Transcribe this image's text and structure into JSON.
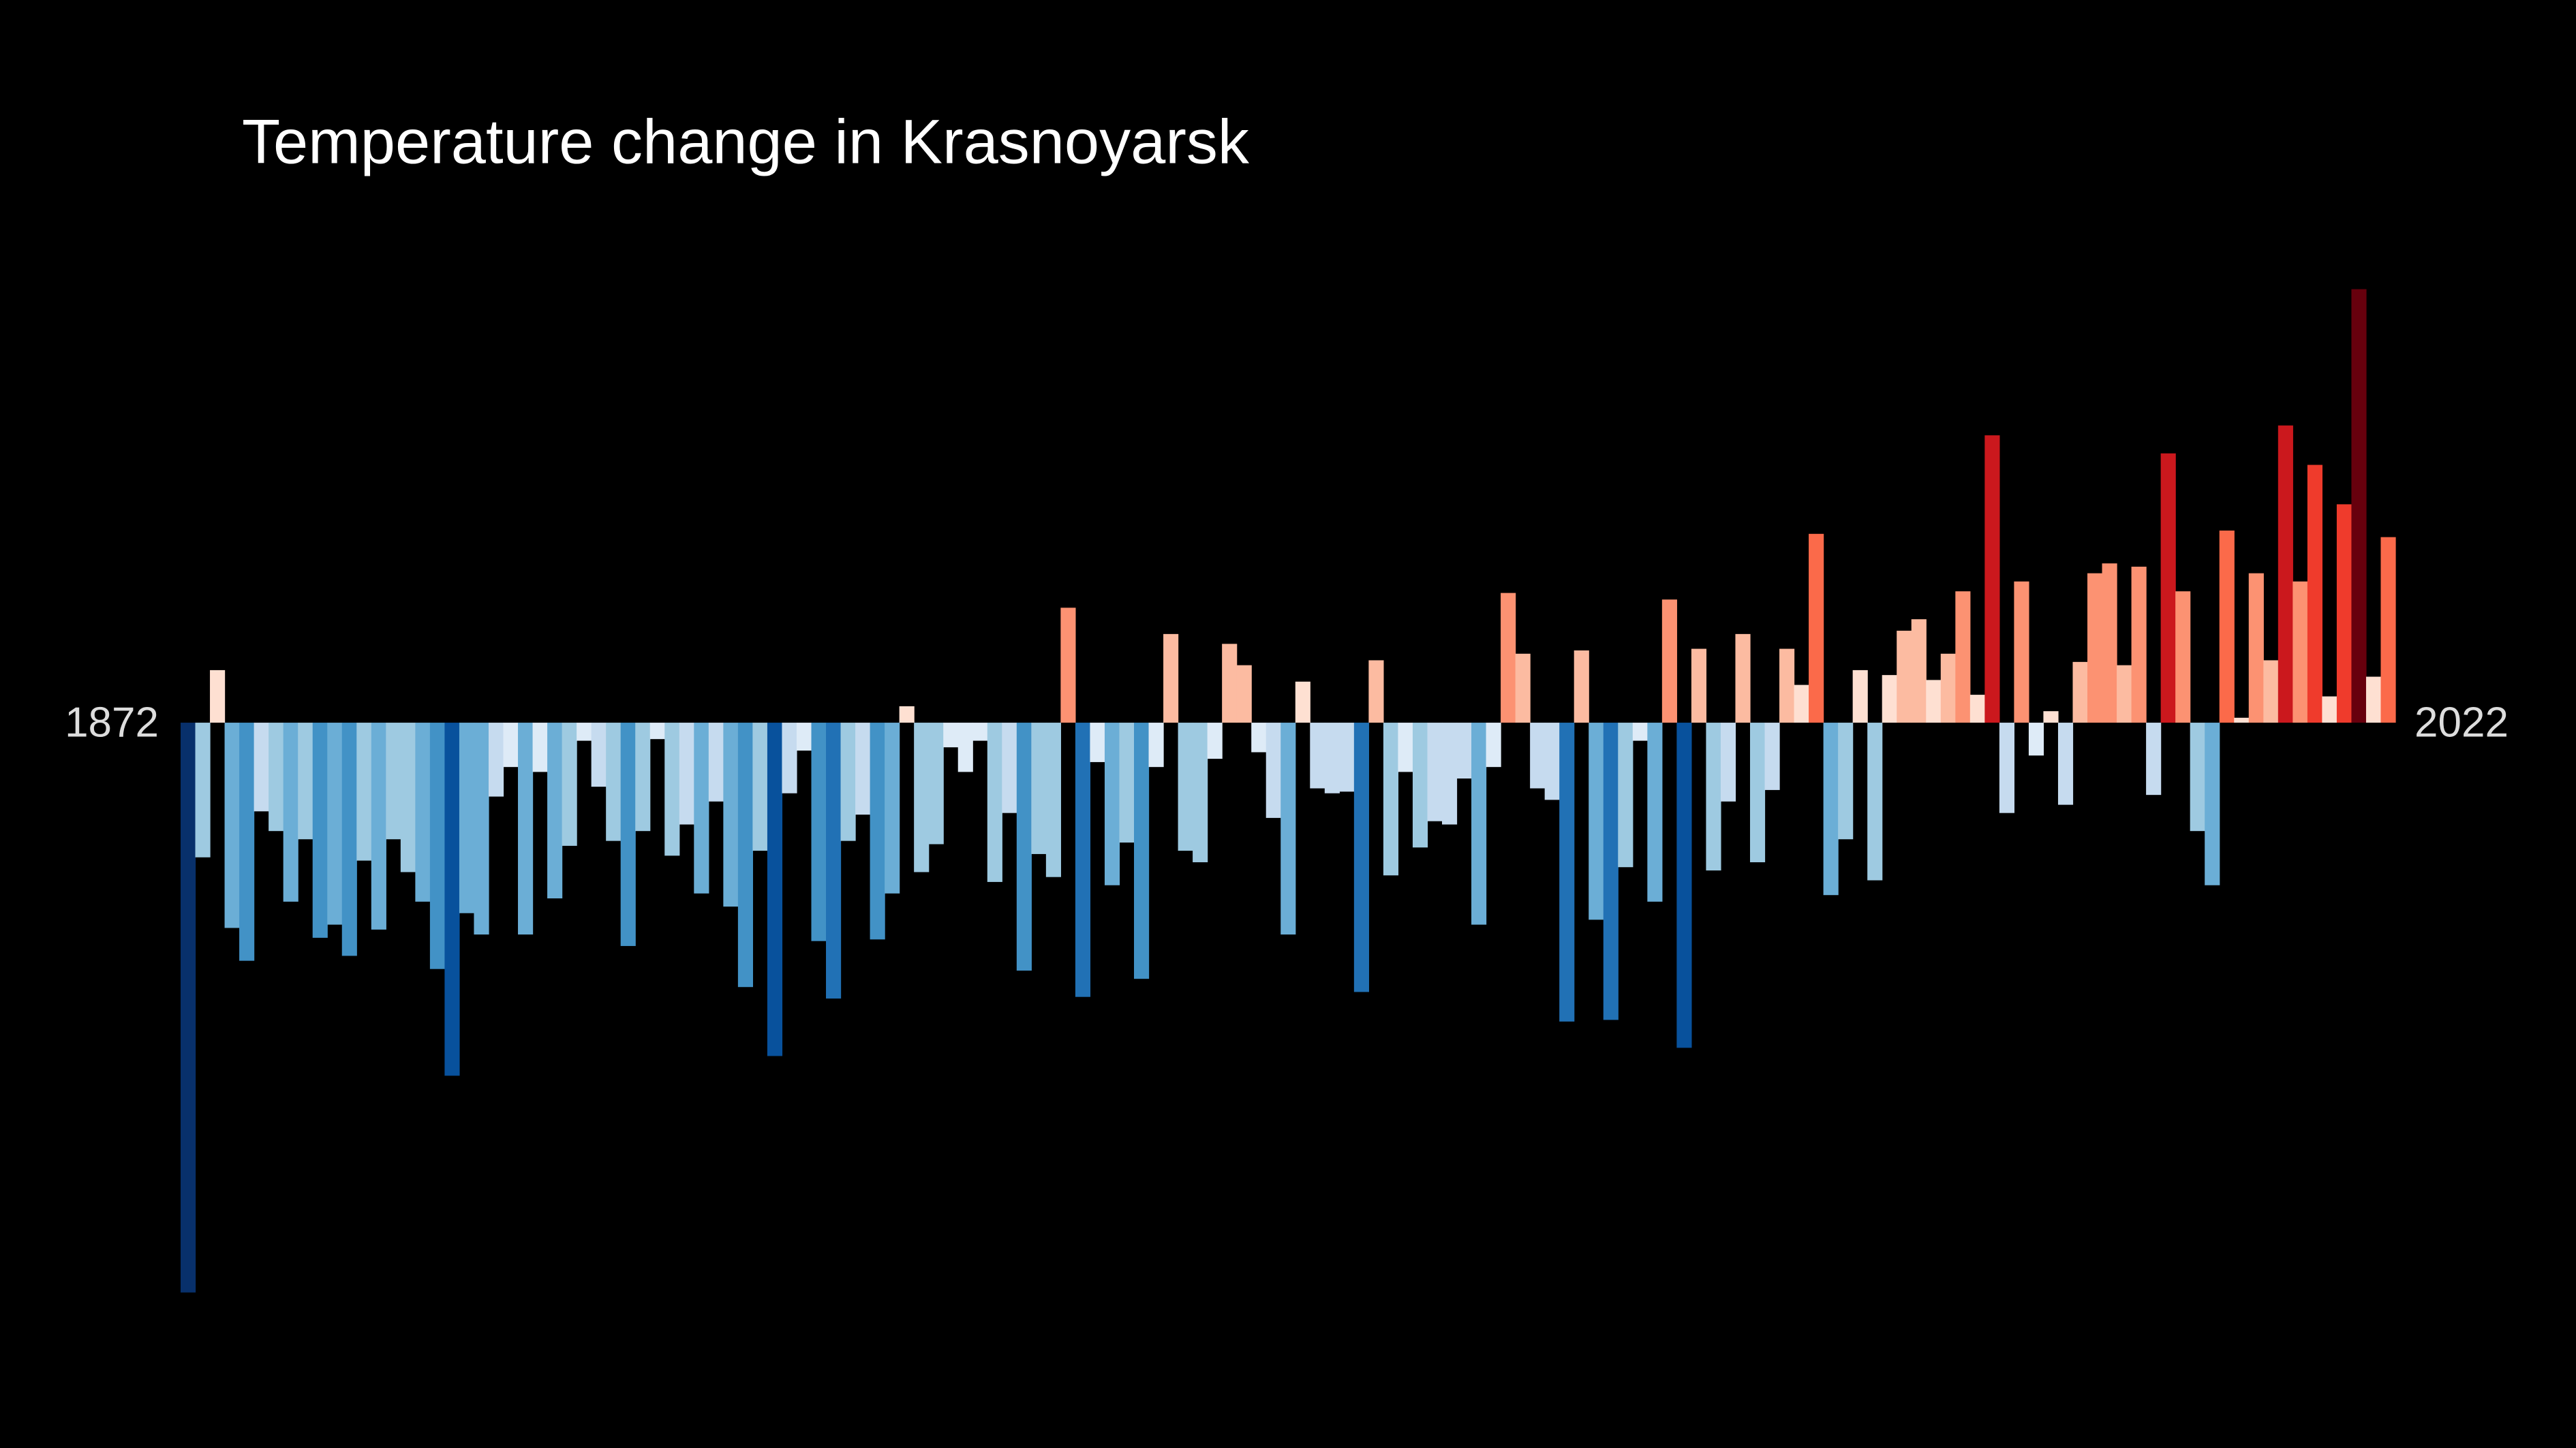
{
  "chart_data": {
    "type": "bar",
    "title": "Temperature change in Krasnoyarsk",
    "categories": [
      "1872",
      null,
      null,
      null,
      null,
      null,
      null,
      null,
      null,
      null,
      null,
      null,
      null,
      null,
      null,
      null,
      null,
      null,
      null,
      null,
      null,
      null,
      null,
      null,
      null,
      null,
      null,
      null,
      null,
      null,
      null,
      null,
      null,
      null,
      null,
      null,
      null,
      null,
      null,
      null,
      null,
      null,
      null,
      null,
      null,
      null,
      null,
      null,
      null,
      null,
      null,
      null,
      null,
      null,
      null,
      null,
      null,
      null,
      null,
      null,
      null,
      null,
      null,
      null,
      null,
      null,
      null,
      null,
      null,
      null,
      null,
      null,
      null,
      null,
      null,
      null,
      null,
      null,
      null,
      null,
      null,
      null,
      null,
      null,
      null,
      null,
      null,
      null,
      null,
      null,
      null,
      null,
      null,
      null,
      null,
      null,
      null,
      null,
      null,
      null,
      null,
      null,
      null,
      null,
      null,
      null,
      null,
      null,
      null,
      null,
      null,
      null,
      null,
      null,
      null,
      null,
      null,
      null,
      null,
      null,
      null,
      null,
      null,
      null,
      null,
      null,
      null,
      null,
      null,
      null,
      null,
      null,
      null,
      null,
      null,
      null,
      null,
      null,
      null,
      null,
      null,
      null,
      null,
      null,
      null,
      null,
      null,
      null,
      null,
      null,
      "2022"
    ],
    "values": [
      -3.47,
      -0.82,
      0.32,
      -1.25,
      -1.45,
      -0.54,
      -0.66,
      -1.09,
      -0.71,
      -1.31,
      -1.23,
      -1.42,
      -0.84,
      -1.26,
      -0.71,
      -0.91,
      -1.09,
      -1.5,
      -2.15,
      -1.16,
      -1.29,
      -0.45,
      -0.27,
      -1.29,
      -0.3,
      -1.07,
      -0.75,
      -0.11,
      -0.39,
      -0.72,
      -1.36,
      -0.66,
      -0.1,
      -0.81,
      -0.62,
      -1.04,
      -0.48,
      -1.12,
      -1.61,
      -0.78,
      -2.03,
      -0.43,
      -0.17,
      -1.33,
      -1.68,
      -0.72,
      -0.56,
      -1.32,
      -1.04,
      0.1,
      -0.91,
      -0.74,
      -0.15,
      -0.3,
      -0.11,
      -0.97,
      -0.55,
      -1.51,
      -0.8,
      -0.94,
      0.7,
      -1.67,
      -0.24,
      -0.99,
      -0.73,
      -1.56,
      -0.27,
      0.54,
      -0.78,
      -0.85,
      -0.22,
      0.48,
      0.35,
      -0.18,
      -0.58,
      -1.29,
      0.25,
      -0.4,
      -0.43,
      -0.42,
      -1.64,
      0.38,
      -0.93,
      -0.3,
      -0.76,
      -0.6,
      -0.62,
      -0.34,
      -1.23,
      -0.27,
      0.79,
      0.42,
      -0.4,
      -0.47,
      -1.82,
      0.44,
      -1.2,
      -1.81,
      -0.88,
      -0.11,
      -1.09,
      0.75,
      -1.98,
      0.45,
      -0.9,
      -0.48,
      0.54,
      -0.85,
      -0.41,
      0.45,
      0.23,
      1.15,
      -1.05,
      -0.71,
      0.32,
      -0.96,
      0.29,
      0.56,
      0.63,
      0.26,
      0.42,
      0.8,
      0.17,
      1.75,
      -0.55,
      0.86,
      -0.2,
      0.07,
      -0.5,
      0.37,
      0.91,
      0.97,
      0.35,
      0.95,
      -0.44,
      1.64,
      0.8,
      -0.66,
      -0.99,
      1.17,
      0.03,
      0.91,
      0.38,
      1.81,
      0.86,
      1.57,
      0.16,
      1.33,
      2.64,
      0.28,
      1.13
    ],
    "ylim": [
      -3.6,
      2.8
    ],
    "colormap": [
      "#08306b",
      "#08519c",
      "#2171b5",
      "#4292c6",
      "#6baed6",
      "#9ecae1",
      "#c6dbef",
      "#deebf7",
      "#fee0d2",
      "#fcbba1",
      "#fc9272",
      "#fb6a4a",
      "#ef3b2c",
      "#cb181d",
      "#a50f15",
      "#67000d"
    ],
    "color_range": [
      -2.6,
      2.6
    ]
  }
}
